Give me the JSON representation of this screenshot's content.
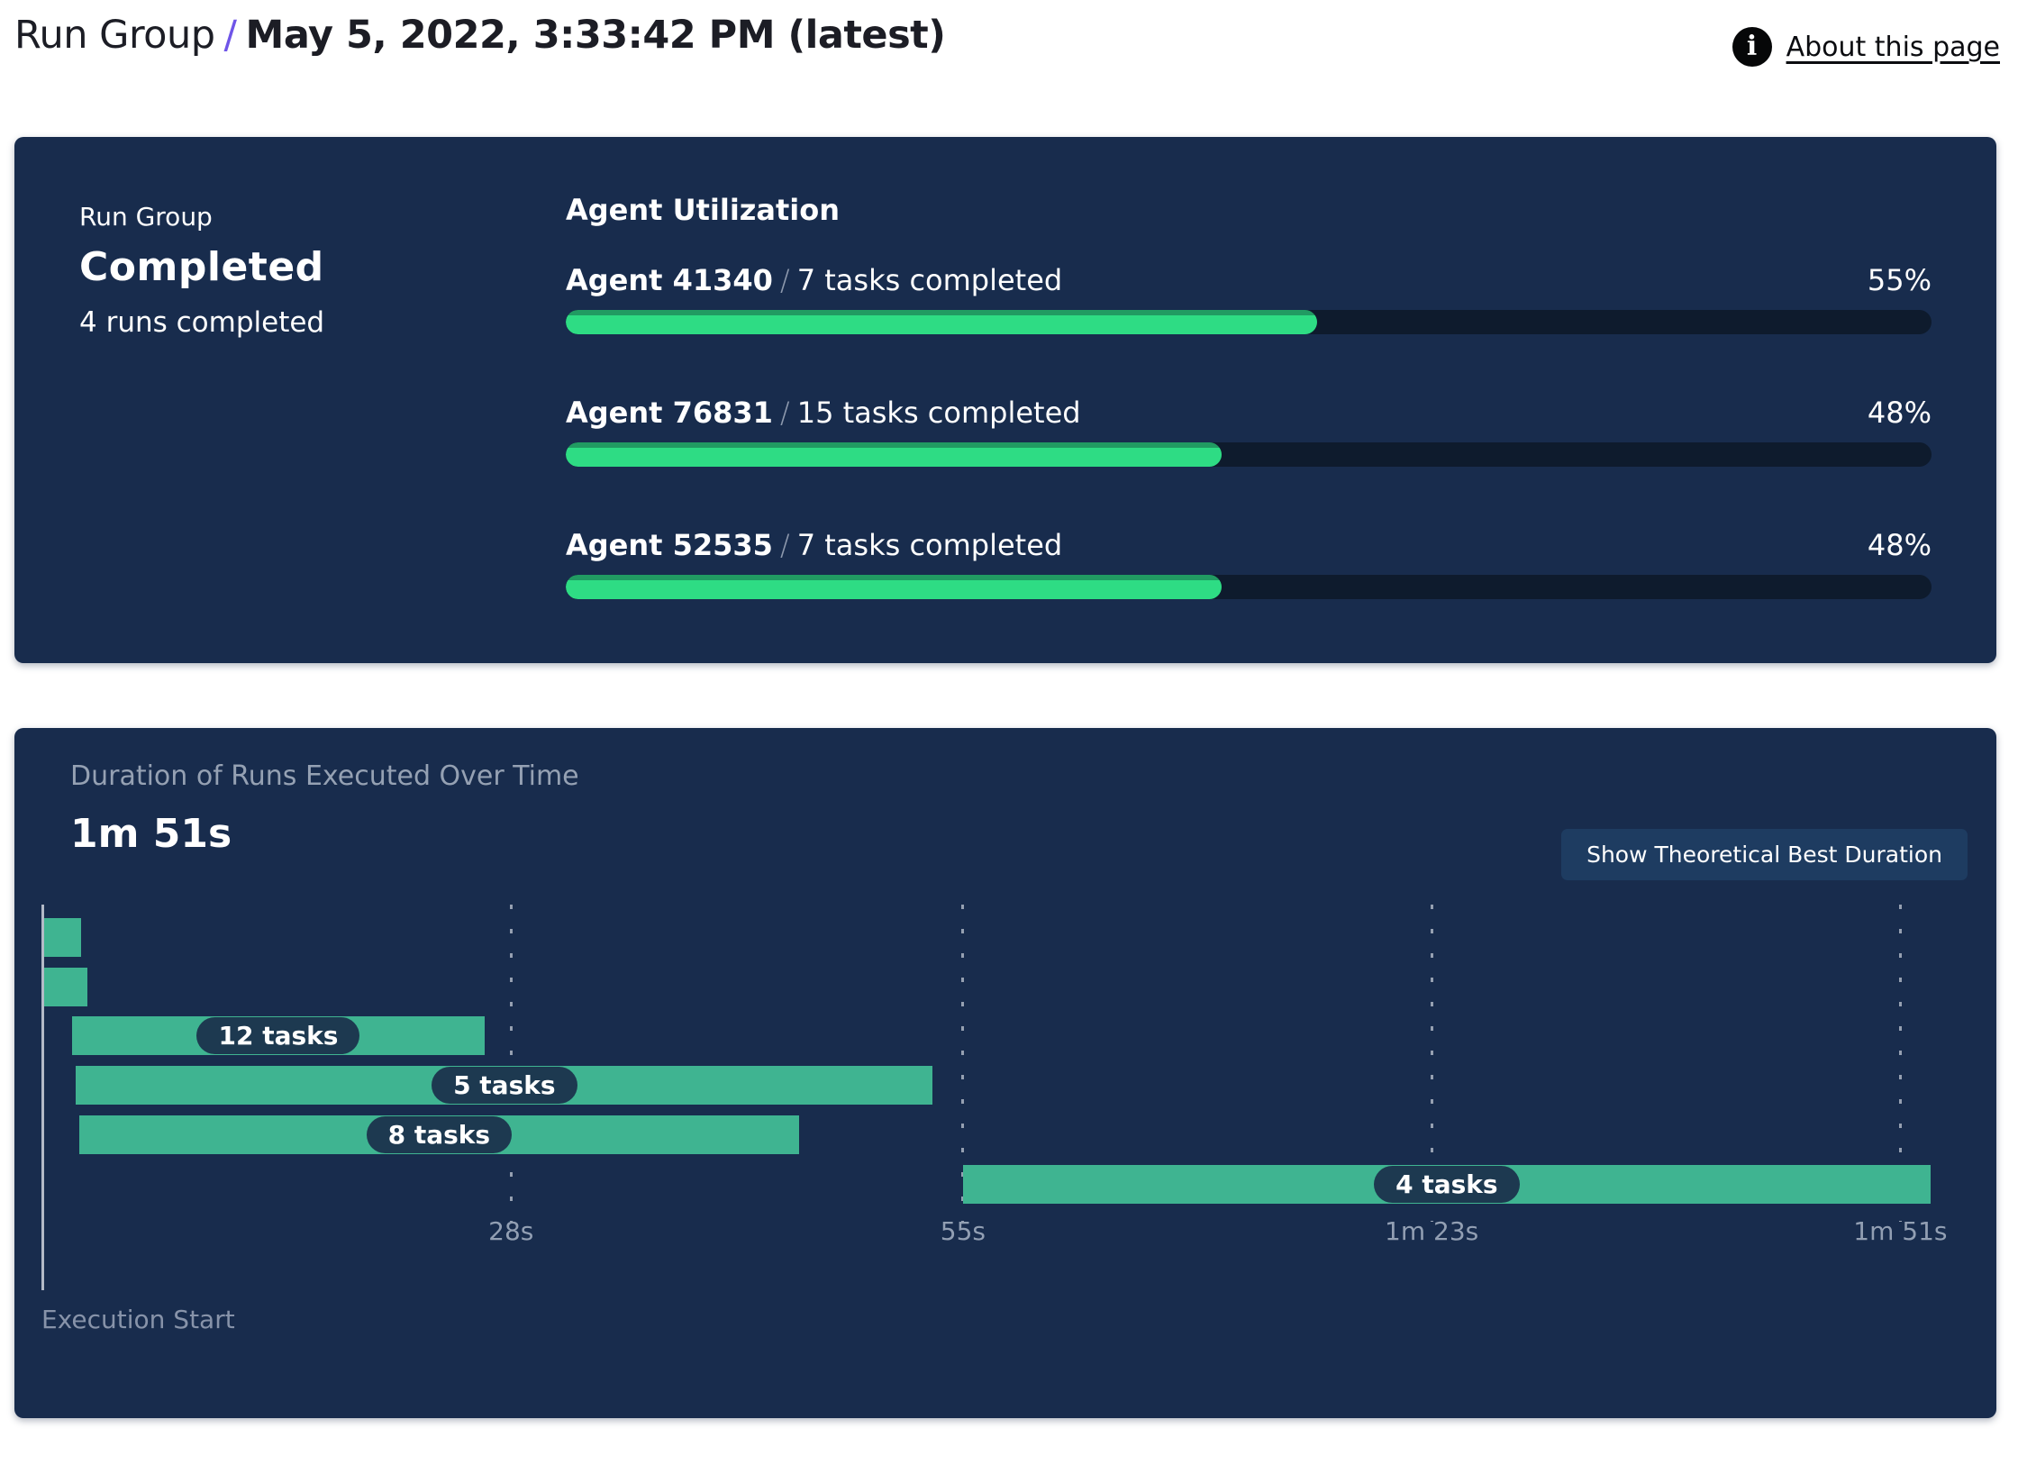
{
  "header": {
    "breadcrumb_root": "Run Group",
    "separator": "/",
    "title": "May 5, 2022, 3:33:42 PM (latest)",
    "about_link": "About this page",
    "info_icon": "i",
    "accent_color": "#6f55e8"
  },
  "summary_panel": {
    "label": "Run Group",
    "status": "Completed",
    "runs_completed": "4 runs completed",
    "section_title": "Agent Utilization",
    "separator": "/",
    "agents": [
      {
        "name": "Agent 41340",
        "tasks": "7 tasks completed",
        "percent": 55,
        "percent_label": "55%"
      },
      {
        "name": "Agent 76831",
        "tasks": "15 tasks completed",
        "percent": 48,
        "percent_label": "48%"
      },
      {
        "name": "Agent 52535",
        "tasks": "7 tasks completed",
        "percent": 48,
        "percent_label": "48%"
      }
    ]
  },
  "duration_panel": {
    "title": "Duration of Runs Executed Over Time",
    "total_duration": "1m 51s",
    "button_label": "Show Theoretical Best Duration",
    "execution_start_label": "Execution Start"
  },
  "chart_data": {
    "type": "bar",
    "subtype": "gantt-timeline",
    "title": "Duration of Runs Executed Over Time",
    "total_duration_label": "1m 51s",
    "x_unit": "seconds",
    "x_range": [
      0,
      113
    ],
    "grid": "dashed-vertical",
    "axis_ticks": [
      {
        "label": "28s",
        "seconds": 28
      },
      {
        "label": "55s",
        "seconds": 55
      },
      {
        "label": "1m 23s",
        "seconds": 83
      },
      {
        "label": "1m 51s",
        "seconds": 111
      }
    ],
    "runs": [
      {
        "label": "",
        "tasks": null,
        "start_s": 0.1,
        "end_s": 2.3
      },
      {
        "label": "",
        "tasks": null,
        "start_s": 0.1,
        "end_s": 2.7
      },
      {
        "label": "12 tasks",
        "tasks": 12,
        "start_s": 1.8,
        "end_s": 26.4
      },
      {
        "label": "5 tasks",
        "tasks": 5,
        "start_s": 2.0,
        "end_s": 53.2
      },
      {
        "label": "8 tasks",
        "tasks": 8,
        "start_s": 2.2,
        "end_s": 45.2
      },
      {
        "label": "4 tasks",
        "tasks": 4,
        "start_s": 55.0,
        "end_s": 112.8
      }
    ],
    "bar_color": "#3FB491",
    "progress_color": "#2EDC84",
    "panel_color": "#182C4D"
  }
}
